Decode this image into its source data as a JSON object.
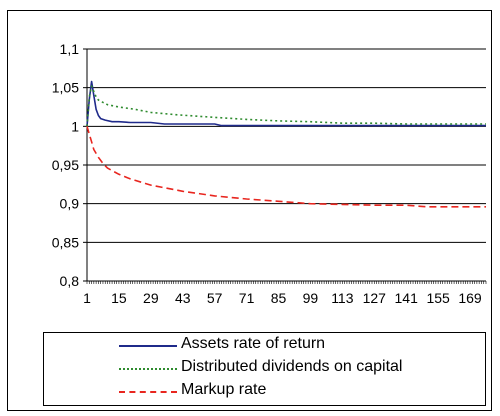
{
  "chart_data": {
    "type": "line",
    "title": "",
    "xlabel": "",
    "ylabel": "",
    "ylim": [
      0.8,
      1.1
    ],
    "xlim": [
      1,
      176
    ],
    "y_ticks": [
      "0,8",
      "0,85",
      "0,9",
      "0,95",
      "1",
      "1,05",
      "1,1"
    ],
    "y_tick_values": [
      0.8,
      0.85,
      0.9,
      0.95,
      1.0,
      1.05,
      1.1
    ],
    "x_ticks": [
      "1",
      "15",
      "29",
      "43",
      "57",
      "71",
      "85",
      "99",
      "113",
      "127",
      "141",
      "155",
      "169"
    ],
    "x_tick_values": [
      1,
      15,
      29,
      43,
      57,
      71,
      85,
      99,
      113,
      127,
      141,
      155,
      169
    ],
    "grid": "horizontal",
    "legend_position": "bottom",
    "series": [
      {
        "name": "Assets rate of return",
        "color": "#1f2a8a",
        "style": "solid",
        "x": [
          1,
          2,
          3,
          4,
          5,
          6,
          7,
          9,
          12,
          15,
          20,
          29,
          35,
          43,
          57,
          60,
          70,
          85,
          99,
          113,
          127,
          141,
          155,
          169,
          176
        ],
        "values": [
          1.0,
          1.035,
          1.058,
          1.04,
          1.022,
          1.014,
          1.01,
          1.008,
          1.006,
          1.006,
          1.005,
          1.005,
          1.003,
          1.003,
          1.003,
          1.001,
          1.001,
          1.001,
          1.001,
          1.001,
          1.001,
          1.001,
          1.001,
          1.001,
          1.001
        ]
      },
      {
        "name": "Distributed dividends on capital",
        "color": "#2e8b2e",
        "style": "dotted",
        "x": [
          1,
          2,
          3,
          4,
          5,
          6,
          8,
          10,
          15,
          22,
          29,
          40,
          50,
          60,
          71,
          85,
          99,
          113,
          127,
          141,
          155,
          169,
          176
        ],
        "values": [
          1.0,
          1.038,
          1.052,
          1.045,
          1.038,
          1.034,
          1.031,
          1.028,
          1.025,
          1.022,
          1.018,
          1.015,
          1.013,
          1.011,
          1.009,
          1.007,
          1.006,
          1.004,
          1.004,
          1.003,
          1.003,
          1.003,
          1.003
        ]
      },
      {
        "name": "Markup rate",
        "color": "#e8261f",
        "style": "dashed",
        "x": [
          1,
          2,
          3,
          4,
          6,
          8,
          10,
          15,
          20,
          29,
          36,
          43,
          57,
          71,
          85,
          99,
          113,
          127,
          141,
          150,
          155,
          169,
          176
        ],
        "values": [
          1.0,
          0.99,
          0.98,
          0.97,
          0.96,
          0.952,
          0.946,
          0.938,
          0.932,
          0.924,
          0.92,
          0.916,
          0.91,
          0.906,
          0.903,
          0.9,
          0.899,
          0.898,
          0.898,
          0.896,
          0.896,
          0.896,
          0.896
        ]
      }
    ]
  }
}
